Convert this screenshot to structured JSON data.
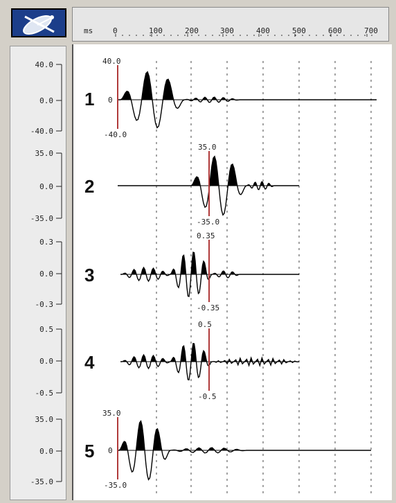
{
  "ruler": {
    "unit_label": "ms",
    "ticks": [
      "0",
      "100",
      "200",
      "300",
      "400",
      "500",
      "600",
      "700"
    ]
  },
  "icons": {
    "logo": "satellite-dish-icon"
  },
  "colors": {
    "logo_bg": "#1c3e8a",
    "marker": "#b03a3a",
    "trace": "#000000",
    "grid": "#444444"
  },
  "scale_panel": [
    {
      "top": "40.0",
      "mid": "0.0",
      "bottom": "-40.0"
    },
    {
      "top": "35.0",
      "mid": "0.0",
      "bottom": "-35.0"
    },
    {
      "top": "0.3",
      "mid": "0.0",
      "bottom": "-0.3"
    },
    {
      "top": "0.5",
      "mid": "0.0",
      "bottom": "-0.5"
    },
    {
      "top": "35.0",
      "mid": "0.0",
      "bottom": "-35.0"
    }
  ],
  "traces": [
    {
      "index": "1",
      "marker_top": "40.0",
      "marker_bottom": "-40.0",
      "zero_label": "0"
    },
    {
      "index": "2",
      "marker_top": "35.0",
      "marker_bottom": "-35.0",
      "zero_label": ""
    },
    {
      "index": "3",
      "marker_top": "0.35",
      "marker_bottom": "-0.35",
      "zero_label": ""
    },
    {
      "index": "4",
      "marker_top": "0.5",
      "marker_bottom": "-0.5",
      "zero_label": ""
    },
    {
      "index": "5",
      "marker_top": "35.0",
      "marker_bottom": "-35.0",
      "zero_label": "0"
    }
  ]
}
